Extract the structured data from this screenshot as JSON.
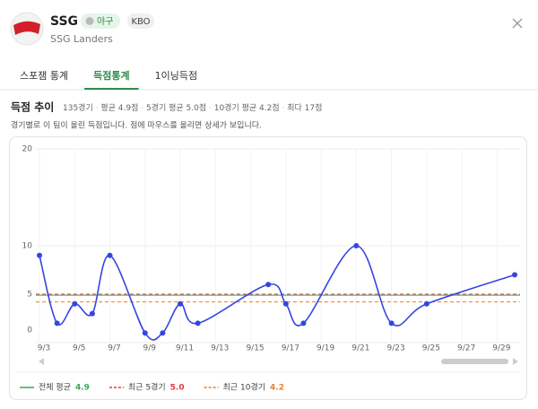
{
  "header": {
    "team": "SSG",
    "sport_badge": "야구",
    "league_badge": "KBO",
    "subtitle": "SSG Landers"
  },
  "tabs": [
    "스포잼 통계",
    "득점통계",
    "1이닝득점"
  ],
  "active_tab": 1,
  "section": {
    "title": "득점 추이",
    "stats": [
      "135경기",
      "평균 4.9점",
      "5경기 평균 5.0점",
      "10경기 평균 4.2점",
      "최다 17점"
    ],
    "description": "경기별로 이 팀이 올린 득점입니다. 점에 마우스를 올리면 상세가 보입니다."
  },
  "chart_data": {
    "type": "line",
    "curve": "smooth",
    "color": "#3346e0",
    "x": [
      3,
      4,
      5,
      6,
      7,
      9,
      10,
      11,
      12,
      16,
      17,
      18,
      21,
      23,
      25,
      30
    ],
    "values": [
      9,
      2,
      4,
      3,
      9,
      1,
      1,
      4,
      2,
      6,
      4,
      2,
      10,
      2,
      4,
      7
    ],
    "xlim": [
      3,
      30
    ],
    "xticks": [
      {
        "value": 3,
        "label": "9/3"
      },
      {
        "value": 5,
        "label": "9/5"
      },
      {
        "value": 7,
        "label": "9/7"
      },
      {
        "value": 9,
        "label": "9/9"
      },
      {
        "value": 11,
        "label": "9/11"
      },
      {
        "value": 13,
        "label": "9/13"
      },
      {
        "value": 15,
        "label": "9/15"
      },
      {
        "value": 17,
        "label": "9/17"
      },
      {
        "value": 19,
        "label": "9/19"
      },
      {
        "value": 21,
        "label": "9/21"
      },
      {
        "value": 23,
        "label": "9/23"
      },
      {
        "value": 25,
        "label": "9/25"
      },
      {
        "value": 27,
        "label": "9/27"
      },
      {
        "value": 29,
        "label": "9/29"
      }
    ],
    "ylim": [
      0,
      20
    ],
    "yticks": [
      0,
      5,
      10,
      20
    ],
    "grid": true,
    "reference_lines": [
      {
        "name": "전체 평균",
        "value": 4.9,
        "label": "4.9",
        "color": "#3aa655",
        "style": "solid"
      },
      {
        "name": "최근 5경기",
        "value": 5,
        "label": "5.0",
        "color": "#e0393e",
        "style": "dashed"
      },
      {
        "name": "최근 10경기",
        "value": 4.2,
        "label": "4.2",
        "color": "#ef7d22",
        "style": "dashed"
      }
    ]
  }
}
